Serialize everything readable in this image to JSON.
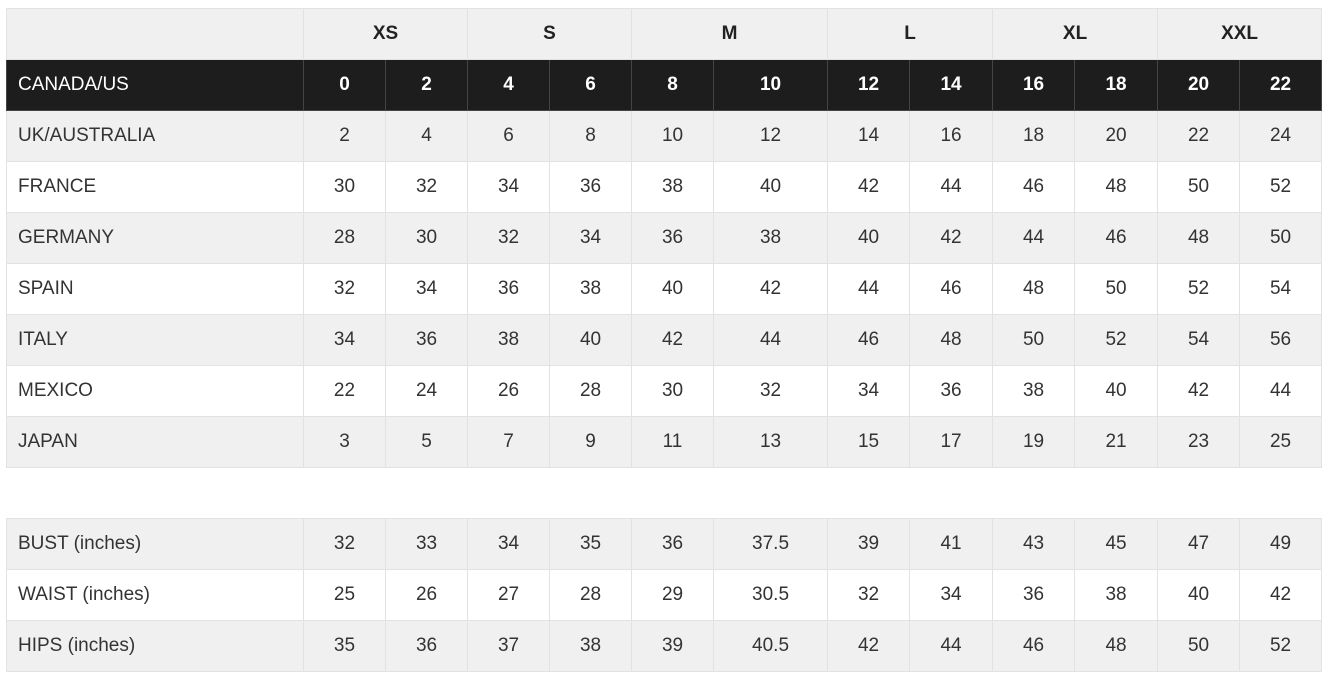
{
  "header": {
    "size_groups": [
      "XS",
      "S",
      "M",
      "L",
      "XL",
      "XXL"
    ]
  },
  "table": {
    "header_row": {
      "label": "CANADA/US",
      "values": [
        0,
        2,
        4,
        6,
        8,
        10,
        12,
        14,
        16,
        18,
        20,
        22
      ]
    },
    "rows": [
      {
        "label": "UK/AUSTRALIA",
        "values": [
          2,
          4,
          6,
          8,
          10,
          12,
          14,
          16,
          18,
          20,
          22,
          24
        ]
      },
      {
        "label": "FRANCE",
        "values": [
          30,
          32,
          34,
          36,
          38,
          40,
          42,
          44,
          46,
          48,
          50,
          52
        ]
      },
      {
        "label": "GERMANY",
        "values": [
          28,
          30,
          32,
          34,
          36,
          38,
          40,
          42,
          44,
          46,
          48,
          50
        ]
      },
      {
        "label": "SPAIN",
        "values": [
          32,
          34,
          36,
          38,
          40,
          42,
          44,
          46,
          48,
          50,
          52,
          54
        ]
      },
      {
        "label": "ITALY",
        "values": [
          34,
          36,
          38,
          40,
          42,
          44,
          46,
          48,
          50,
          52,
          54,
          56
        ]
      },
      {
        "label": "MEXICO",
        "values": [
          22,
          24,
          26,
          28,
          30,
          32,
          34,
          36,
          38,
          40,
          42,
          44
        ]
      },
      {
        "label": "JAPAN",
        "values": [
          3,
          5,
          7,
          9,
          11,
          13,
          15,
          17,
          19,
          21,
          23,
          25
        ]
      }
    ],
    "measurements": [
      {
        "label": "BUST (inches)",
        "values": [
          32,
          33,
          34,
          35,
          36,
          37.5,
          39,
          41,
          43,
          45,
          47,
          49
        ]
      },
      {
        "label": "WAIST (inches)",
        "values": [
          25,
          26,
          27,
          28,
          29,
          30.5,
          32,
          34,
          36,
          38,
          40,
          42
        ]
      },
      {
        "label": "HIPS (inches)",
        "values": [
          35,
          36,
          37,
          38,
          39,
          40.5,
          42,
          44,
          46,
          48,
          50,
          52
        ]
      }
    ]
  }
}
